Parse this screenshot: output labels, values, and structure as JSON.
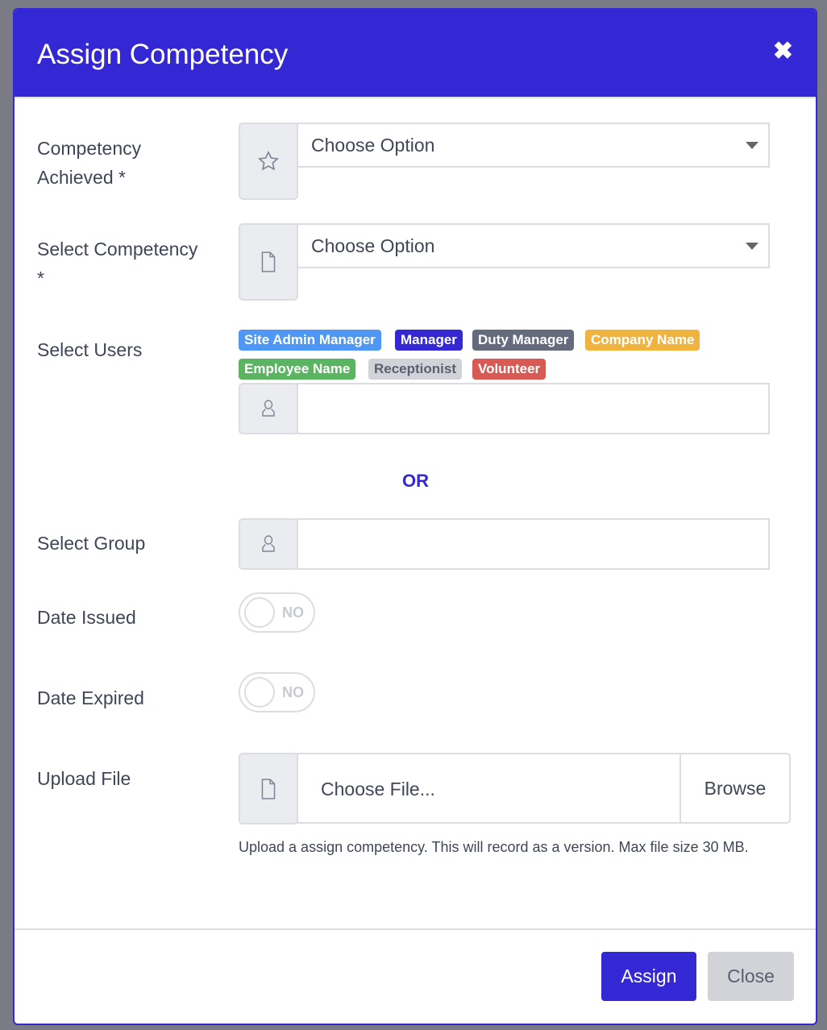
{
  "modal": {
    "title": "Assign Competency",
    "close_icon": "close-icon"
  },
  "form": {
    "competency_achieved": {
      "label": "Competency Achieved *",
      "value": "Choose Option",
      "icon": "star-icon"
    },
    "select_competency": {
      "label": "Select Competency *",
      "value": "Choose Option",
      "icon": "file-icon"
    },
    "select_users": {
      "label": "Select Users",
      "value": "",
      "icon": "user-icon",
      "badges": [
        {
          "label": "Site Admin Manager",
          "color": "#4f97f5"
        },
        {
          "label": "Manager",
          "color": "#3428d4"
        },
        {
          "label": "Duty Manager",
          "color": "#646b7d"
        },
        {
          "label": "Company Name",
          "color": "#f0b33e"
        },
        {
          "label": "Employee Name",
          "color": "#5bb462"
        },
        {
          "label": "Receptionist",
          "color": "#d1d3d8"
        },
        {
          "label": "Volunteer",
          "color": "#d75a55"
        }
      ]
    },
    "or_text": "OR",
    "select_group": {
      "label": "Select Group",
      "value": "",
      "icon": "user-icon"
    },
    "date_issued": {
      "label": "Date Issued",
      "toggle": "NO",
      "on": false
    },
    "date_expired": {
      "label": "Date Expired",
      "toggle": "NO",
      "on": false
    },
    "upload_file": {
      "label": "Upload File",
      "placeholder": "Choose File...",
      "browse": "Browse",
      "help": "Upload a assign competency. This will record as a version. Max file size 30 MB."
    }
  },
  "footer": {
    "assign": "Assign",
    "close": "Close"
  },
  "colors": {
    "primary": "#3428d4",
    "secondary": "#d1d3d8"
  }
}
